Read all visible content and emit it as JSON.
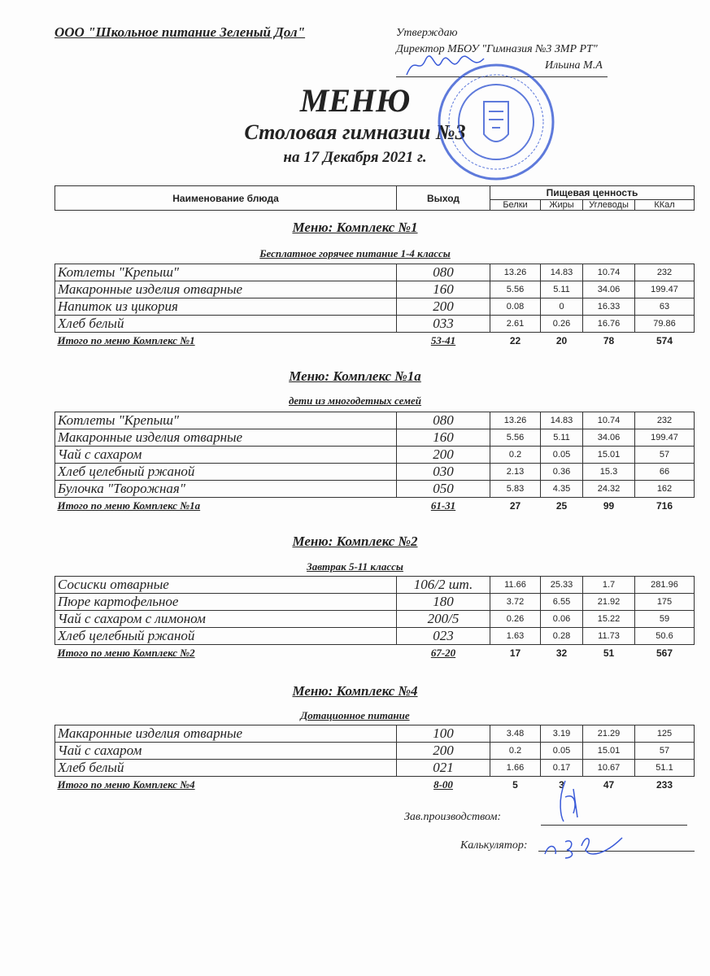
{
  "header": {
    "organization": "ООО \"Школьное питание Зеленый Дол\"",
    "approve": "Утверждаю",
    "director": "Директор МБОУ \"Гимназия №3 ЗМР РТ\"",
    "director_name": "Ильина М.А",
    "title": "МЕНЮ",
    "subtitle": "Столовая гимназии №3",
    "date": "на 17 Декабря 2021 г."
  },
  "table_header": {
    "name": "Наименование блюда",
    "output": "Выход",
    "nutrition": "Пищевая ценность",
    "protein": "Белки",
    "fat": "Жиры",
    "carbs": "Углеводы",
    "kcal": "ККал"
  },
  "stamp_color": "#2a4fd0",
  "sections": [
    {
      "title": "Меню: Комплекс №1",
      "subtitle": "Бесплатное горячее питание  1-4 классы",
      "rows": [
        [
          "Котлеты  \"Крепыш\"",
          "080",
          "13.26",
          "14.83",
          "10.74",
          "232"
        ],
        [
          "Макаронные изделия отварные",
          "160",
          "5.56",
          "5.11",
          "34.06",
          "199.47"
        ],
        [
          "Напиток из цикория",
          "200",
          "0.08",
          "0",
          "16.33",
          "63"
        ],
        [
          "Хлеб  белый",
          "033",
          "2.61",
          "0.26",
          "16.76",
          "79.86"
        ]
      ],
      "total": [
        "Итого по меню Комплекс №1",
        "53-41",
        "22",
        "20",
        "78",
        "574"
      ]
    },
    {
      "title": "Меню: Комплекс №1а",
      "subtitle": "дети из многодетных семей",
      "rows": [
        [
          "Котлеты  \"Крепыш\"",
          "080",
          "13.26",
          "14.83",
          "10.74",
          "232"
        ],
        [
          "Макаронные изделия отварные",
          "160",
          "5.56",
          "5.11",
          "34.06",
          "199.47"
        ],
        [
          "Чай с сахаром",
          "200",
          "0.2",
          "0.05",
          "15.01",
          "57"
        ],
        [
          "Хлеб  целебный ржаной",
          "030",
          "2.13",
          "0.36",
          "15.3",
          "66"
        ],
        [
          "Булочка \"Творожная\"",
          "050",
          "5.83",
          "4.35",
          "24.32",
          "162"
        ]
      ],
      "total": [
        "Итого по меню Комплекс №1а",
        "61-31",
        "27",
        "25",
        "99",
        "716"
      ]
    },
    {
      "title": "Меню: Комплекс №2",
      "subtitle": "Завтрак 5-11 классы",
      "rows": [
        [
          "Сосиски  отварные",
          "106/2 шт.",
          "11.66",
          "25.33",
          "1.7",
          "281.96"
        ],
        [
          "Пюре картофельное",
          "180",
          "3.72",
          "6.55",
          "21.92",
          "175"
        ],
        [
          "Чай с сахаром с лимоном",
          "200/5",
          "0.26",
          "0.06",
          "15.22",
          "59"
        ],
        [
          "Хлеб  целебный ржаной",
          "023",
          "1.63",
          "0.28",
          "11.73",
          "50.6"
        ]
      ],
      "total": [
        "Итого по меню Комплекс №2",
        "67-20",
        "17",
        "32",
        "51",
        "567"
      ]
    },
    {
      "title": "Меню: Комплекс №4",
      "subtitle": "Дотационное питание",
      "rows": [
        [
          "Макаронные изделия отварные",
          "100",
          "3.48",
          "3.19",
          "21.29",
          "125"
        ],
        [
          "Чай с сахаром",
          "200",
          "0.2",
          "0.05",
          "15.01",
          "57"
        ],
        [
          "Хлеб белый",
          "021",
          "1.66",
          "0.17",
          "10.67",
          "51.1"
        ]
      ],
      "total": [
        "Итого по меню Комплекс №4",
        "8-00",
        "5",
        "3",
        "47",
        "233"
      ]
    }
  ],
  "signatures": {
    "production": "Зав.производством:",
    "calculator": "Калькулятор:"
  }
}
